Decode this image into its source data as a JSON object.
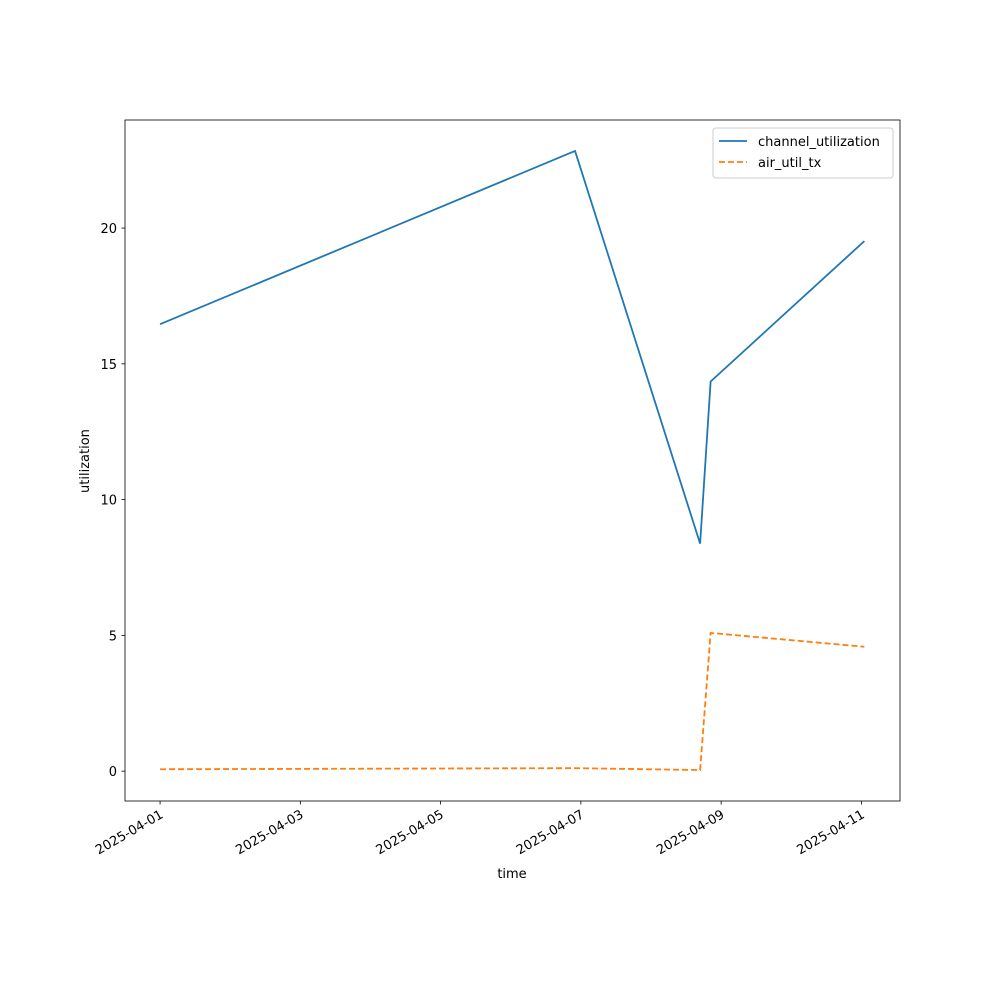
{
  "chart_data": {
    "type": "line",
    "x_label": "time",
    "y_label": "utilization",
    "x": [
      "2025-04-01T00:00",
      "2025-04-06T22:00",
      "2025-04-08T16:48",
      "2025-04-08T20:24",
      "2025-04-11T01:00"
    ],
    "series": [
      {
        "name": "channel_utilization",
        "color": "#1f77b4",
        "linestyle": "solid",
        "values": [
          16.46,
          22.84,
          8.38,
          14.35,
          19.52
        ]
      },
      {
        "name": "air_util_tx",
        "color": "#ff7f0e",
        "linestyle": "dashed",
        "values": [
          0.07,
          0.11,
          0.04,
          5.09,
          4.58
        ]
      }
    ],
    "xlim": [
      "2025-03-31T12:00",
      "2025-04-11T13:12"
    ],
    "xticks": [
      "2025-04-01",
      "2025-04-03",
      "2025-04-05",
      "2025-04-07",
      "2025-04-09",
      "2025-04-11"
    ],
    "ylim": [
      -1.1,
      23.98
    ],
    "yticks": [
      0,
      5,
      10,
      15,
      20
    ],
    "legend": "upper right"
  }
}
